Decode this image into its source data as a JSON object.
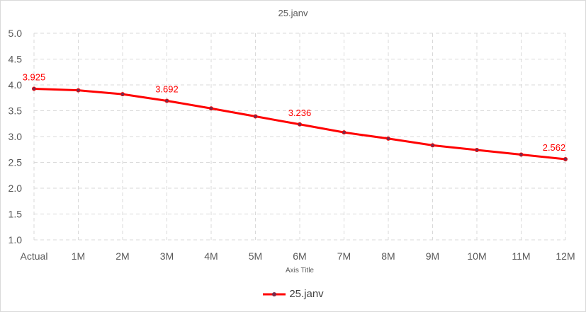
{
  "chart_data": {
    "type": "line",
    "title": "25.janv",
    "xlabel": "Axis Title",
    "ylabel": "",
    "categories": [
      "Actual",
      "1M",
      "2M",
      "3M",
      "4M",
      "5M",
      "6M",
      "7M",
      "8M",
      "9M",
      "10M",
      "11M",
      "12M"
    ],
    "series": [
      {
        "name": "25.janv",
        "color": "#ff0000",
        "marker_color": "#7a2a4a",
        "values": [
          3.925,
          3.895,
          3.82,
          3.692,
          3.545,
          3.39,
          3.236,
          3.08,
          2.96,
          2.83,
          2.74,
          2.65,
          2.562
        ]
      }
    ],
    "data_labels": [
      {
        "index": 0,
        "text": "3.925"
      },
      {
        "index": 3,
        "text": "3.692"
      },
      {
        "index": 6,
        "text": "3.236"
      },
      {
        "index": 12,
        "text": "2.562"
      }
    ],
    "ylim": [
      1.0,
      5.0
    ],
    "yticks": [
      "1.0",
      "1.5",
      "2.0",
      "2.5",
      "3.0",
      "3.5",
      "4.0",
      "4.5",
      "5.0"
    ],
    "grid": true,
    "legend_position": "bottom"
  }
}
